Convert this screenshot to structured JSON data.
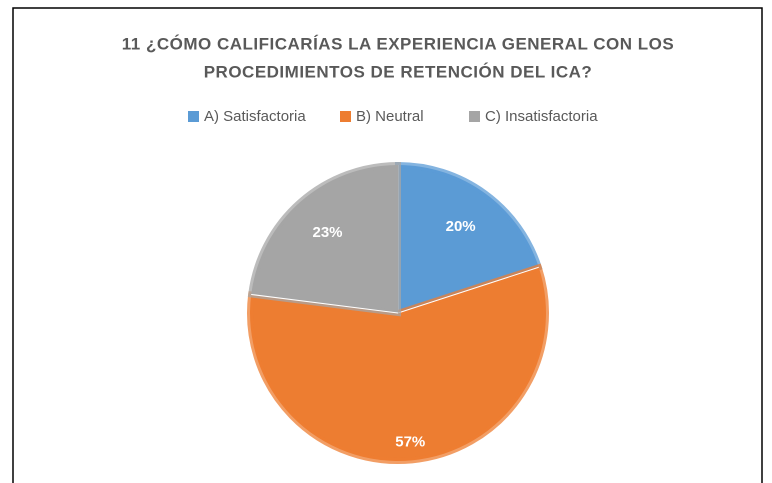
{
  "chart_data": {
    "type": "pie",
    "title": [
      "11 ¿CÓMO CALIFICARÍAS LA EXPERIENCIA GENERAL CON LOS",
      "PROCEDIMIENTOS DE RETENCIÓN DEL ICA?"
    ],
    "categories": [
      "A) Satisfactoria",
      "B) Neutral",
      "C) Insatisfactoria"
    ],
    "values": [
      20,
      57,
      23
    ],
    "value_labels": [
      "20%",
      "57%",
      "23%"
    ],
    "colors": [
      "#5b9bd5",
      "#ed7d31",
      "#a5a5a5"
    ],
    "legend": "top"
  }
}
